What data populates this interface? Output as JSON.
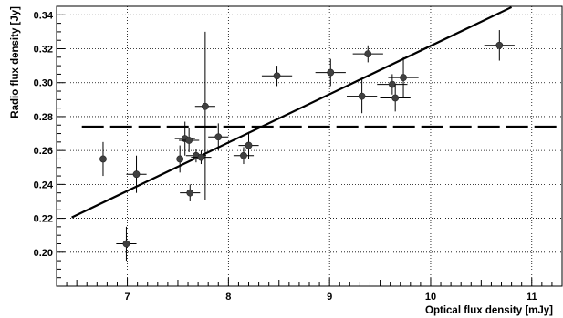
{
  "chart_data": {
    "type": "scatter",
    "title": "",
    "xlabel": "Optical flux density [mJy]",
    "ylabel": "Radio flux density [Jy]",
    "xlim": [
      6.3,
      11.3
    ],
    "ylim": [
      0.18,
      0.345
    ],
    "x_ticks": [
      7,
      8,
      9,
      10,
      11
    ],
    "x_tick_labels": [
      "7",
      "8",
      "9",
      "10",
      "11"
    ],
    "y_ticks": [
      0.2,
      0.22,
      0.24,
      0.26,
      0.28,
      0.3,
      0.32,
      0.34
    ],
    "y_tick_labels": [
      "0.20",
      "0.22",
      "0.24",
      "0.26",
      "0.28",
      "0.30",
      "0.32",
      "0.34"
    ],
    "grid": true,
    "legend": "none",
    "colors": {
      "points": "#404040",
      "lines": "#000000",
      "grid": "#000000"
    },
    "points": [
      {
        "x": 6.76,
        "y": 0.255,
        "xerr": 0.1,
        "yerr_low": 0.01,
        "yerr_high": 0.01
      },
      {
        "x": 6.99,
        "y": 0.205,
        "xerr": 0.1,
        "yerr_low": 0.01,
        "yerr_high": 0.01
      },
      {
        "x": 7.09,
        "y": 0.246,
        "xerr": 0.1,
        "yerr_low": 0.011,
        "yerr_high": 0.011
      },
      {
        "x": 7.52,
        "y": 0.255,
        "xerr": 0.2,
        "yerr_low": 0.008,
        "yerr_high": 0.008
      },
      {
        "x": 7.57,
        "y": 0.267,
        "xerr": 0.1,
        "yerr_low": 0.01,
        "yerr_high": 0.01
      },
      {
        "x": 7.61,
        "y": 0.266,
        "xerr": 0.1,
        "yerr_low": 0.007,
        "yerr_high": 0.007
      },
      {
        "x": 7.62,
        "y": 0.235,
        "xerr": 0.1,
        "yerr_low": 0.005,
        "yerr_high": 0.005
      },
      {
        "x": 7.68,
        "y": 0.257,
        "xerr": 0.1,
        "yerr_low": 0.004,
        "yerr_high": 0.004
      },
      {
        "x": 7.73,
        "y": 0.256,
        "xerr": 0.1,
        "yerr_low": 0.004,
        "yerr_high": 0.004
      },
      {
        "x": 7.77,
        "y": 0.286,
        "xerr": 0.1,
        "yerr_low": 0.055,
        "yerr_high": 0.044
      },
      {
        "x": 7.9,
        "y": 0.268,
        "xerr": 0.1,
        "yerr_low": 0.008,
        "yerr_high": 0.008
      },
      {
        "x": 8.15,
        "y": 0.257,
        "xerr": 0.1,
        "yerr_low": 0.005,
        "yerr_high": 0.005
      },
      {
        "x": 8.2,
        "y": 0.263,
        "xerr": 0.1,
        "yerr_low": 0.008,
        "yerr_high": 0.008
      },
      {
        "x": 8.48,
        "y": 0.304,
        "xerr": 0.15,
        "yerr_low": 0.006,
        "yerr_high": 0.006
      },
      {
        "x": 9.01,
        "y": 0.306,
        "xerr": 0.15,
        "yerr_low": 0.008,
        "yerr_high": 0.008
      },
      {
        "x": 9.32,
        "y": 0.292,
        "xerr": 0.15,
        "yerr_low": 0.01,
        "yerr_high": 0.01
      },
      {
        "x": 9.38,
        "y": 0.317,
        "xerr": 0.15,
        "yerr_low": 0.005,
        "yerr_high": 0.005
      },
      {
        "x": 9.62,
        "y": 0.299,
        "xerr": 0.15,
        "yerr_low": 0.006,
        "yerr_high": 0.006
      },
      {
        "x": 9.65,
        "y": 0.291,
        "xerr": 0.15,
        "yerr_low": 0.008,
        "yerr_high": 0.008
      },
      {
        "x": 9.73,
        "y": 0.303,
        "xerr": 0.15,
        "yerr_low": 0.012,
        "yerr_high": 0.012
      },
      {
        "x": 10.68,
        "y": 0.322,
        "xerr": 0.15,
        "yerr_low": 0.009,
        "yerr_high": 0.009
      }
    ],
    "fit_line": {
      "x": [
        6.45,
        10.8
      ],
      "y": [
        0.2205,
        0.3445
      ],
      "style": "solid"
    },
    "mean_line": {
      "y": 0.274,
      "style": "dashed"
    }
  }
}
